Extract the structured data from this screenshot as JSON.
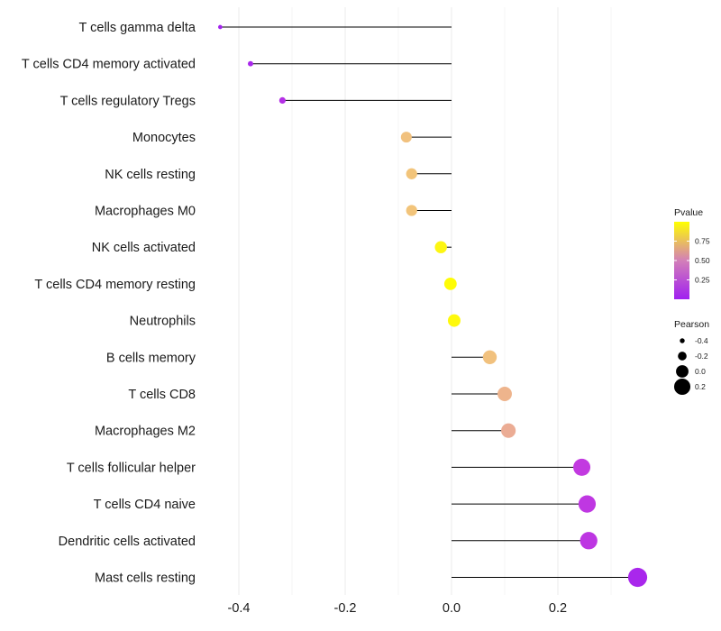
{
  "chart_data": {
    "type": "lollipop",
    "title": "",
    "xlabel": "",
    "ylabel": "",
    "xlim": [
      -0.45,
      0.37
    ],
    "xticks": [
      -0.4,
      -0.2,
      0.0,
      0.2
    ],
    "xtick_labels": [
      "-0.4",
      "-0.2",
      "0.0",
      "0.2"
    ],
    "grid": true,
    "categories": [
      "T cells gamma delta",
      "T cells CD4 memory activated",
      "T cells regulatory  Tregs",
      "Monocytes",
      "NK cells resting",
      "Macrophages M0",
      "NK cells activated",
      "T cells CD4 memory resting",
      "Neutrophils",
      "B cells memory",
      "T cells CD8",
      "Macrophages M2",
      "T cells follicular helper",
      "T cells CD4 naive",
      "Dendritic cells activated",
      "Mast cells resting"
    ],
    "pearson": [
      -0.435,
      -0.378,
      -0.318,
      -0.085,
      -0.075,
      -0.075,
      -0.02,
      -0.002,
      0.005,
      0.072,
      0.1,
      0.107,
      0.245,
      0.255,
      0.258,
      0.35
    ],
    "pvalue": [
      0.02,
      0.05,
      0.12,
      0.78,
      0.8,
      0.8,
      0.97,
      0.99,
      0.98,
      0.78,
      0.7,
      0.65,
      0.2,
      0.18,
      0.17,
      0.05
    ],
    "color_scale": {
      "name": "Pvalue",
      "ticks": [
        0.25,
        0.5,
        0.75
      ],
      "tick_labels": [
        "0.25",
        "0.50",
        "0.75"
      ],
      "low_color": "#a020f0",
      "high_color": "#ffff00"
    },
    "size_scale": {
      "name": "Pearson",
      "values": [
        -0.4,
        -0.2,
        0.0,
        0.2
      ],
      "labels": [
        "-0.4",
        "-0.2",
        "0.0",
        "0.2"
      ]
    },
    "legend_position": "right"
  }
}
